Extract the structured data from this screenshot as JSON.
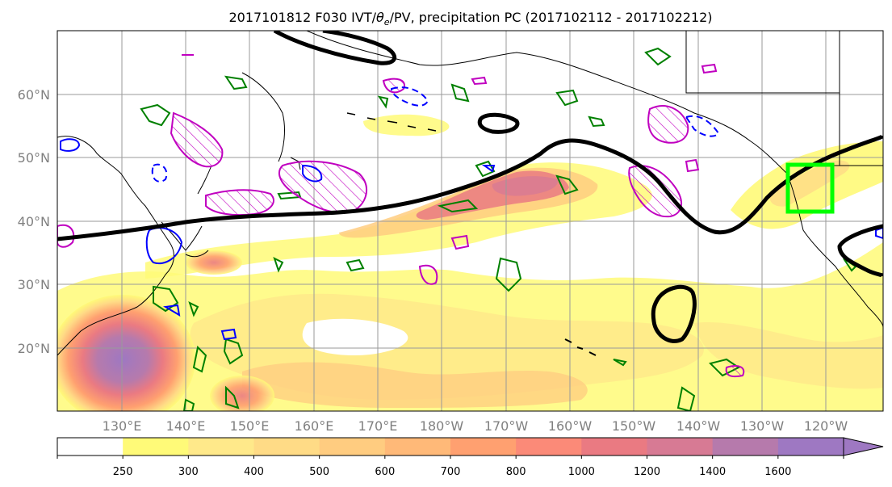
{
  "title": {
    "prefix": "2017101812 F030 IVT/",
    "theta": "θ",
    "theta_sub": "e",
    "suffix": "/PV, precipitation PC (2017102112 - 2017102212)"
  },
  "lat_labels": [
    "20°N",
    "30°N",
    "40°N",
    "50°N",
    "60°N"
  ],
  "lon_labels": [
    "130°E",
    "140°E",
    "150°E",
    "160°E",
    "170°E",
    "180°W",
    "170°W",
    "160°W",
    "150°W",
    "140°W",
    "130°W",
    "120°W"
  ],
  "colorbar": {
    "levels": [
      "250",
      "300",
      "400",
      "500",
      "600",
      "700",
      "800",
      "1000",
      "1200",
      "1400",
      "1600"
    ],
    "colors": [
      "#ffffff",
      "#fffa78",
      "#ffe98a",
      "#ffdb86",
      "#ffcc80",
      "#ffb978",
      "#ffa070",
      "#fb8a78",
      "#ea7a82",
      "#d77a94",
      "#b67aac",
      "#9e78c2"
    ]
  },
  "legend_colors": {
    "ivt_contour": "#000000",
    "theta_e": "#008000",
    "pv_positive": "#c000c0",
    "pv_negative": "#0000ff",
    "target_box": "#00ff00"
  }
}
